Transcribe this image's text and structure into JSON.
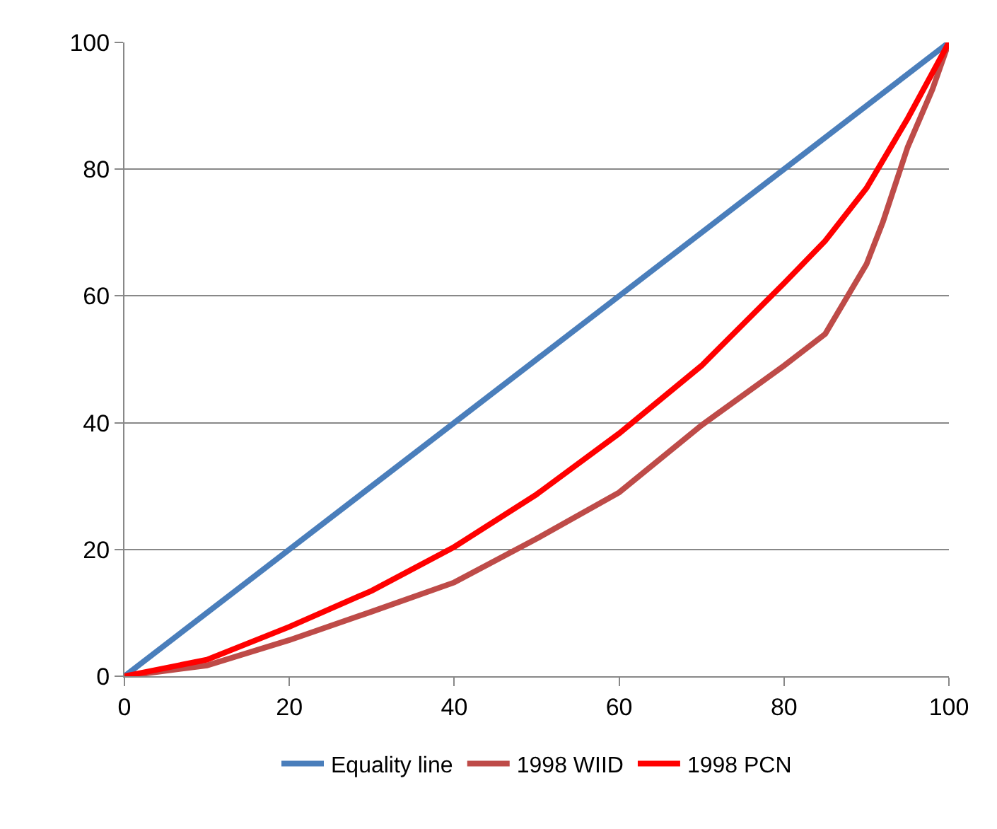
{
  "chart_data": {
    "type": "line",
    "x": [
      0,
      10,
      20,
      30,
      40,
      50,
      60,
      70,
      80,
      85,
      90,
      92,
      95,
      98,
      100
    ],
    "series": [
      {
        "name": "Equality line",
        "color": "#4a7ebb",
        "x": [
          0,
          100
        ],
        "values": [
          0,
          100
        ]
      },
      {
        "name": "1998 WIID",
        "color": "#be4b48",
        "values": [
          0,
          1.7,
          5.7,
          10.2,
          14.8,
          21.7,
          29,
          39.6,
          49,
          54,
          65,
          71.7,
          83.5,
          92.6,
          100
        ]
      },
      {
        "name": "1998 PCN",
        "color": "#ff0000",
        "x": [
          0,
          10,
          20,
          30,
          40,
          50,
          60,
          70,
          80,
          85,
          90,
          95,
          100
        ],
        "values": [
          0,
          2.6,
          7.8,
          13.5,
          20.4,
          28.7,
          38.3,
          49,
          62,
          68.7,
          77,
          88,
          100
        ]
      }
    ],
    "xlim": [
      0,
      100
    ],
    "xticks": [
      0,
      20,
      40,
      60,
      80,
      100
    ],
    "ylim": [
      0,
      100
    ],
    "yticks": [
      0,
      20,
      40,
      60,
      80,
      100
    ],
    "grid": "y",
    "legend": "bottom",
    "marker": "none",
    "line_style": "solid"
  }
}
